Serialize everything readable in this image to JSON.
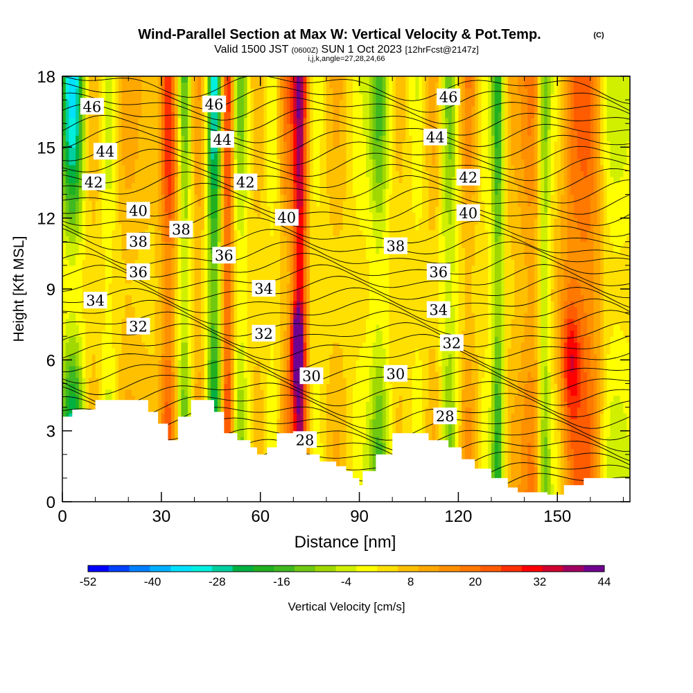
{
  "title": "Wind-Parallel Section at Max W: Vertical Velocity & Pot.Temp.",
  "copyright": "(C)",
  "subtitle": {
    "valid": "Valid 1500 JST",
    "utc": "(0600Z)",
    "date": "SUN 1 Oct 2023",
    "forecast": "[12hrFcst@2147z]",
    "grid": "i,j,k,angle=27,28,24,66"
  },
  "chart_data": {
    "type": "heatmap",
    "xlabel": "Distance [nm]",
    "ylabel": "Height [Kft MSL]",
    "xlim": [
      0,
      172
    ],
    "ylim": [
      0,
      18
    ],
    "xticks": [
      "0",
      "30",
      "60",
      "90",
      "120",
      "150"
    ],
    "yticks": [
      "0",
      "3",
      "6",
      "9",
      "12",
      "15",
      "18"
    ],
    "colorbar": {
      "label": "Vertical Velocity [cm/s]",
      "tick_labels": [
        "-52",
        "-40",
        "-28",
        "-16",
        "-4",
        "8",
        "20",
        "32",
        "44"
      ],
      "min": -52,
      "max": 44,
      "step": 4,
      "colors": [
        "#0000ff",
        "#0040ff",
        "#0080ff",
        "#00b0ff",
        "#00e0ff",
        "#00f0e0",
        "#00d0a0",
        "#00b040",
        "#20b020",
        "#40b820",
        "#70c810",
        "#a0d800",
        "#d0f000",
        "#ffff00",
        "#ffe000",
        "#ffc000",
        "#ffa800",
        "#ff9000",
        "#ff7800",
        "#ff5c00",
        "#ff3000",
        "#ff0000",
        "#d00030",
        "#a00060",
        "#700090"
      ]
    },
    "contour_field": "Potential temperature",
    "contour_labels": [
      {
        "text": "46",
        "x": 9,
        "y": 16.7
      },
      {
        "text": "44",
        "x": 13,
        "y": 14.8
      },
      {
        "text": "42",
        "x": 9.5,
        "y": 13.5
      },
      {
        "text": "40",
        "x": 23,
        "y": 12.3
      },
      {
        "text": "38",
        "x": 23,
        "y": 11.0
      },
      {
        "text": "36",
        "x": 23,
        "y": 9.7
      },
      {
        "text": "34",
        "x": 10,
        "y": 8.5
      },
      {
        "text": "32",
        "x": 23,
        "y": 7.4
      },
      {
        "text": "38",
        "x": 36,
        "y": 11.5
      },
      {
        "text": "46",
        "x": 46,
        "y": 16.8
      },
      {
        "text": "44",
        "x": 48.5,
        "y": 15.3
      },
      {
        "text": "42",
        "x": 55.5,
        "y": 13.5
      },
      {
        "text": "36",
        "x": 49,
        "y": 10.4
      },
      {
        "text": "40",
        "x": 68,
        "y": 12.0
      },
      {
        "text": "34",
        "x": 61,
        "y": 9.0
      },
      {
        "text": "32",
        "x": 61,
        "y": 7.1
      },
      {
        "text": "30",
        "x": 75.5,
        "y": 5.3
      },
      {
        "text": "28",
        "x": 73.5,
        "y": 2.6
      },
      {
        "text": "38",
        "x": 101,
        "y": 10.8
      },
      {
        "text": "46",
        "x": 117,
        "y": 17.1
      },
      {
        "text": "44",
        "x": 113,
        "y": 15.4
      },
      {
        "text": "42",
        "x": 123,
        "y": 13.7
      },
      {
        "text": "40",
        "x": 123,
        "y": 12.2
      },
      {
        "text": "36",
        "x": 114,
        "y": 9.7
      },
      {
        "text": "34",
        "x": 114,
        "y": 8.1
      },
      {
        "text": "32",
        "x": 118,
        "y": 6.7
      },
      {
        "text": "30",
        "x": 101,
        "y": 5.4
      },
      {
        "text": "28",
        "x": 116,
        "y": 3.6
      }
    ],
    "terrain_kft": [
      [
        0,
        3.6
      ],
      [
        3,
        3.9
      ],
      [
        10,
        4.3
      ],
      [
        26,
        3.8
      ],
      [
        29,
        3.3
      ],
      [
        32,
        2.6
      ],
      [
        35,
        3.6
      ],
      [
        39,
        4.3
      ],
      [
        46,
        3.8
      ],
      [
        49,
        2.9
      ],
      [
        53,
        2.6
      ],
      [
        57,
        2.3
      ],
      [
        59,
        2.0
      ],
      [
        62,
        2.3
      ],
      [
        65,
        2.9
      ],
      [
        70,
        2.6
      ],
      [
        74,
        2.0
      ],
      [
        78,
        1.7
      ],
      [
        83,
        1.5
      ],
      [
        86,
        1.3
      ],
      [
        88,
        1.0
      ],
      [
        90,
        0.7
      ],
      [
        91,
        1.3
      ],
      [
        95,
        2.0
      ],
      [
        100,
        2.9
      ],
      [
        107,
        2.9
      ],
      [
        111,
        2.6
      ],
      [
        117,
        2.3
      ],
      [
        121,
        1.8
      ],
      [
        125,
        1.4
      ],
      [
        130,
        1.0
      ],
      [
        135,
        0.6
      ],
      [
        138,
        0.4
      ],
      [
        147,
        0.3
      ],
      [
        152,
        0.7
      ],
      [
        158,
        1.0
      ],
      [
        172,
        1.0
      ]
    ]
  }
}
